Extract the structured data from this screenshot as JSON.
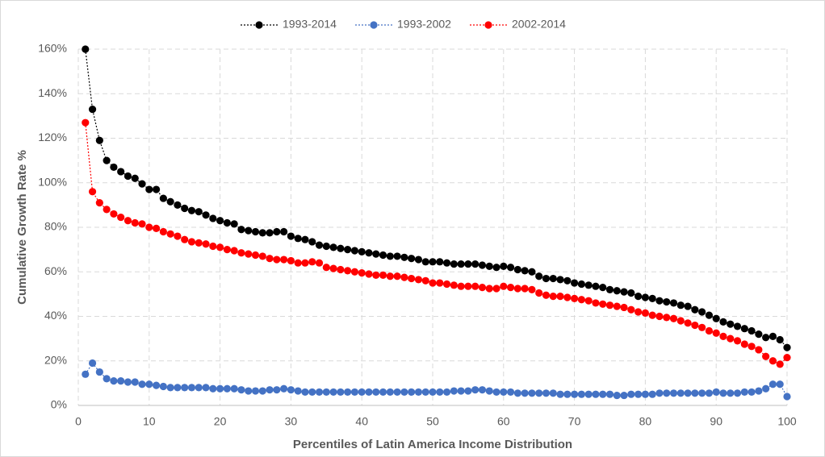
{
  "chart_data": {
    "type": "line",
    "x_label": "Percentiles of Latin America Income Distribution",
    "y_label": "Cumulative Growth Rate %",
    "x": [
      1,
      2,
      3,
      4,
      5,
      6,
      7,
      8,
      9,
      10,
      11,
      12,
      13,
      14,
      15,
      16,
      17,
      18,
      19,
      20,
      21,
      22,
      23,
      24,
      25,
      26,
      27,
      28,
      29,
      30,
      31,
      32,
      33,
      34,
      35,
      36,
      37,
      38,
      39,
      40,
      41,
      42,
      43,
      44,
      45,
      46,
      47,
      48,
      49,
      50,
      51,
      52,
      53,
      54,
      55,
      56,
      57,
      58,
      59,
      60,
      61,
      62,
      63,
      64,
      65,
      66,
      67,
      68,
      69,
      70,
      71,
      72,
      73,
      74,
      75,
      76,
      77,
      78,
      79,
      80,
      81,
      82,
      83,
      84,
      85,
      86,
      87,
      88,
      89,
      90,
      91,
      92,
      93,
      94,
      95,
      96,
      97,
      98,
      99,
      100
    ],
    "series": [
      {
        "name": "1993-2014",
        "color": "#000000",
        "values": [
          160,
          133,
          119,
          110,
          107,
          105,
          103,
          102,
          99.5,
          97,
          97,
          93,
          91.5,
          90,
          88.5,
          87.5,
          87,
          85.5,
          84,
          83,
          82,
          81.5,
          79,
          78.5,
          78,
          77.5,
          77.5,
          78,
          78,
          76,
          75,
          74.5,
          73.5,
          72,
          71.5,
          71,
          70.5,
          70,
          69.5,
          69,
          68.5,
          68,
          67.5,
          67,
          67,
          66.5,
          66,
          65.5,
          64.5,
          64.5,
          64.5,
          64,
          63.5,
          63.5,
          63.5,
          63.5,
          63,
          62.5,
          62,
          62.5,
          62,
          61,
          60.5,
          60,
          58,
          57,
          57,
          56.5,
          56,
          55,
          54.5,
          54,
          53.5,
          53,
          52,
          51.5,
          51,
          50.5,
          49,
          48.5,
          48,
          47,
          46.5,
          46,
          45,
          44.5,
          43,
          42,
          40.5,
          39,
          37.5,
          36.5,
          35.5,
          34.5,
          33.5,
          32,
          30.5,
          31,
          29.5,
          26
        ]
      },
      {
        "name": "1993-2002",
        "color": "#4472c4",
        "values": [
          14,
          19,
          15,
          12,
          11,
          11,
          10.5,
          10.5,
          9.5,
          9.5,
          9,
          8.5,
          8,
          8,
          8,
          8,
          8,
          8,
          7.5,
          7.5,
          7.5,
          7.5,
          7,
          6.5,
          6.5,
          6.5,
          7,
          7,
          7.5,
          7,
          6.5,
          6,
          6,
          6,
          6,
          6,
          6,
          6,
          6,
          6,
          6,
          6,
          6,
          6,
          6,
          6,
          6,
          6,
          6,
          6,
          6,
          6,
          6.5,
          6.5,
          6.5,
          7,
          7,
          6.5,
          6,
          6,
          6,
          5.5,
          5.5,
          5.5,
          5.5,
          5.5,
          5.5,
          5,
          5,
          5,
          5,
          5,
          5,
          5,
          5,
          4.5,
          4.5,
          5,
          5,
          5,
          5,
          5.5,
          5.5,
          5.5,
          5.5,
          5.5,
          5.5,
          5.5,
          5.5,
          6,
          5.5,
          5.5,
          5.5,
          6,
          6,
          6.5,
          7.5,
          9.5,
          9.5,
          4
        ]
      },
      {
        "name": "2002-2014",
        "color": "#ff0000",
        "values": [
          127,
          96,
          91,
          88,
          86,
          84.5,
          83,
          82,
          81.5,
          80,
          79.5,
          78,
          77,
          76,
          74.5,
          73.5,
          73,
          72.5,
          71.5,
          71,
          70,
          69.5,
          68.5,
          68,
          67.5,
          67,
          66,
          65.5,
          65.5,
          65,
          64,
          64,
          64.5,
          64,
          62,
          61.5,
          61,
          60.5,
          60,
          59.5,
          59,
          58.5,
          58.5,
          58,
          58,
          57.5,
          57,
          56.5,
          56,
          55,
          55,
          54.5,
          54,
          53.5,
          53.5,
          53.5,
          53,
          52.5,
          52.5,
          53.5,
          53,
          52.5,
          52.5,
          52,
          50.5,
          49.5,
          49,
          49,
          48.5,
          48,
          47.5,
          47,
          46,
          45.5,
          45,
          44.5,
          44,
          43,
          42,
          41.5,
          40.5,
          40,
          39.5,
          39,
          38,
          37,
          36,
          35,
          33.5,
          32.5,
          31,
          30,
          29,
          27.5,
          26.5,
          25,
          22,
          20,
          18.5,
          21.5
        ]
      }
    ],
    "xlim": [
      0,
      100
    ],
    "xticks": [
      0,
      10,
      20,
      30,
      40,
      50,
      60,
      70,
      80,
      90,
      100
    ],
    "ylim": [
      0,
      160
    ],
    "yticks": [
      {
        "value": 0,
        "label": "0%"
      },
      {
        "value": 20,
        "label": "20%"
      },
      {
        "value": 40,
        "label": "40%"
      },
      {
        "value": 60,
        "label": "60%"
      },
      {
        "value": 80,
        "label": "80%"
      },
      {
        "value": 100,
        "label": "100%"
      },
      {
        "value": 120,
        "label": "120%"
      },
      {
        "value": 140,
        "label": "140%"
      },
      {
        "value": 160,
        "label": "160%"
      }
    ],
    "grid": true,
    "legend": "top"
  }
}
